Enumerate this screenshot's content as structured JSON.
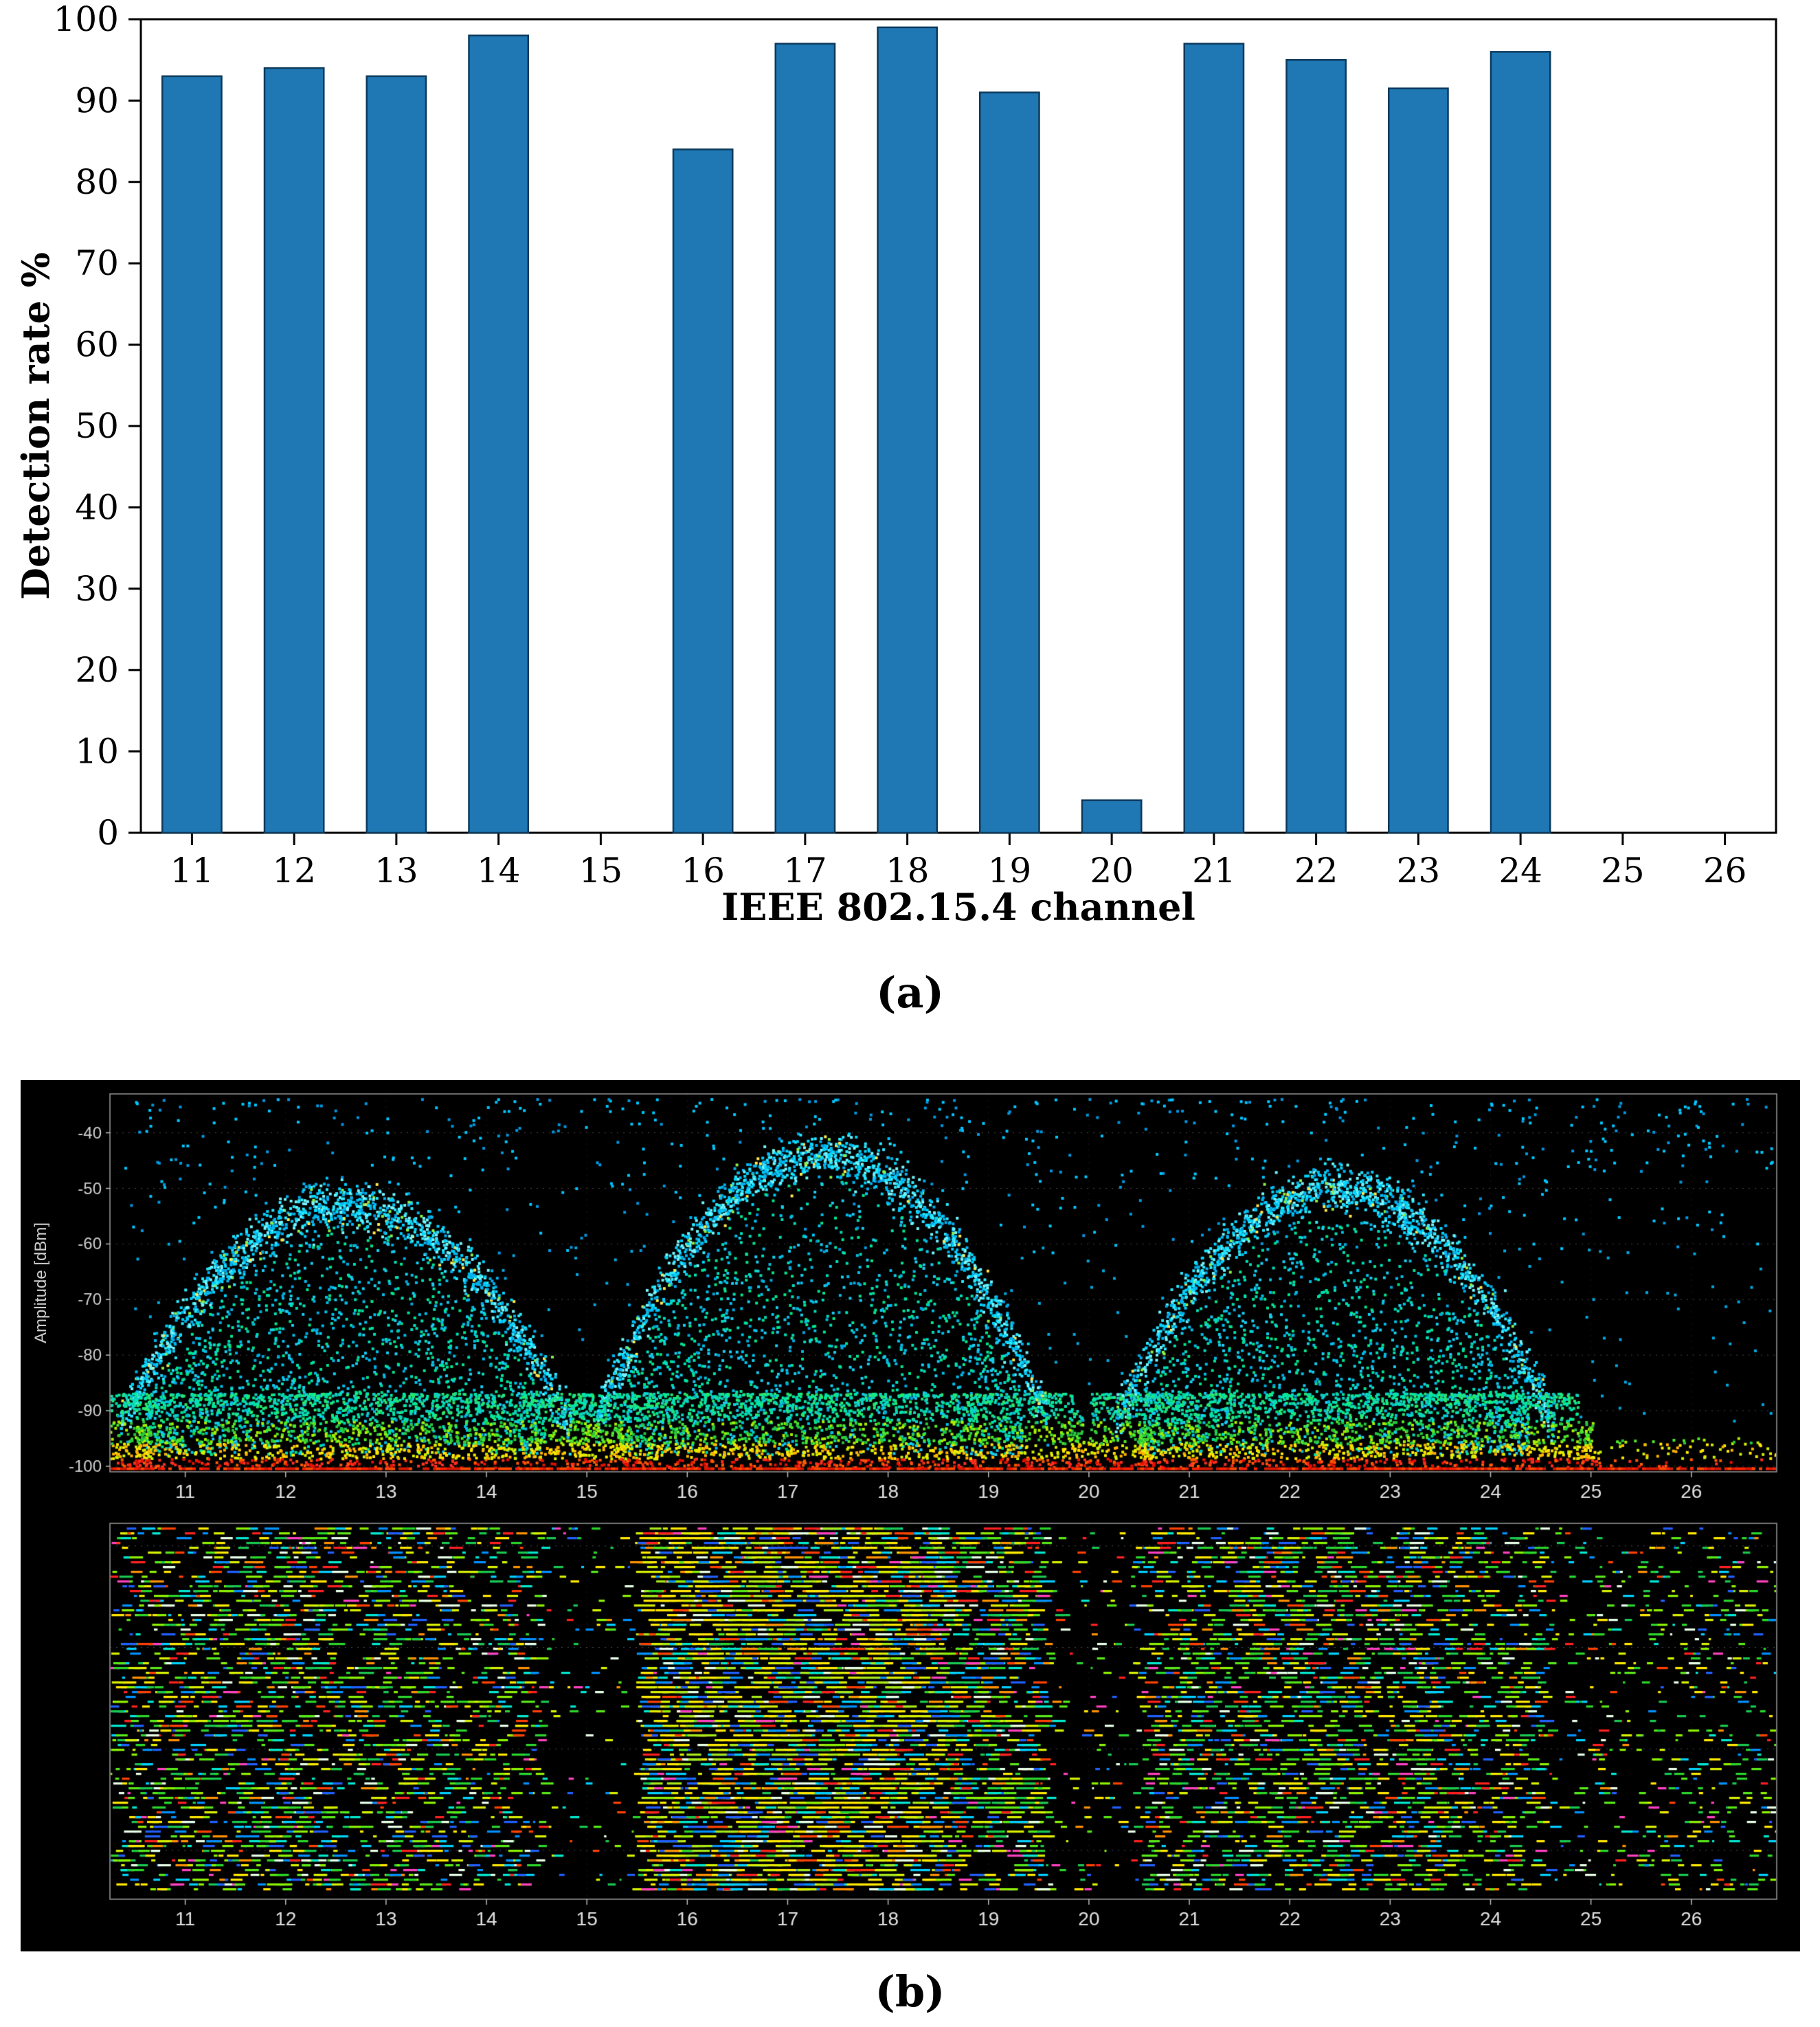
{
  "figure": {
    "caption_a": "(a)",
    "caption_b": "(b)"
  },
  "chart_data": [
    {
      "type": "bar",
      "title": "",
      "xlabel": "IEEE 802.15.4 channel",
      "ylabel": "Detection rate %",
      "categories": [
        11,
        12,
        13,
        14,
        15,
        16,
        17,
        18,
        19,
        20,
        21,
        22,
        23,
        24,
        25,
        26
      ],
      "values": [
        93,
        94,
        93,
        98,
        0,
        84,
        97,
        99,
        91,
        4,
        97,
        95,
        91.5,
        96,
        0,
        0
      ],
      "ylim": [
        0,
        100
      ],
      "yticks": [
        0,
        10,
        20,
        30,
        40,
        50,
        60,
        70,
        80,
        90,
        100
      ],
      "grid": false,
      "legend_position": "none",
      "bar_color": "#1f77b4",
      "bar_edge_color": "#0d3a5c"
    },
    {
      "type": "scatter",
      "title": "",
      "xlabel": "",
      "ylabel": "Amplitude [dBm]",
      "xticks": [
        11,
        12,
        13,
        14,
        15,
        16,
        17,
        18,
        19,
        20,
        21,
        22,
        23,
        24,
        25,
        26
      ],
      "yticks": [
        -40,
        -50,
        -60,
        -70,
        -80,
        -90,
        -100
      ],
      "xlim": [
        10.25,
        26.85
      ],
      "ylim": [
        -101,
        -33
      ],
      "background": "#000000",
      "grid": "dotted",
      "humps": [
        {
          "center": 12.6,
          "half_width": 1.95,
          "peak": -53,
          "edge_level": -83
        },
        {
          "center": 17.35,
          "half_width": 1.95,
          "peak": -44,
          "edge_level": -80
        },
        {
          "center": 22.45,
          "half_width": 1.9,
          "peak": -50,
          "edge_level": -82
        }
      ],
      "spikes": [
        {
          "channel": 15.35,
          "top": -91
        },
        {
          "channel": 19.9,
          "top": -90
        },
        {
          "channel": 20.55,
          "top": -93
        },
        {
          "channel": 10.6,
          "top": -93
        },
        {
          "channel": 24.95,
          "top": -92
        }
      ],
      "baseline_level": -100
    },
    {
      "type": "heatmap",
      "title": "",
      "xticks": [
        11,
        12,
        13,
        14,
        15,
        16,
        17,
        18,
        19,
        20,
        21,
        22,
        23,
        24,
        25,
        26
      ],
      "xlim": [
        10.25,
        26.85
      ],
      "background": "#000000",
      "grid": "dotted",
      "density_by_channel": {
        "11": 0.55,
        "12": 0.62,
        "13": 0.55,
        "14": 0.45,
        "15": 0.12,
        "16": 0.95,
        "17": 1.0,
        "18": 1.0,
        "19": 0.8,
        "20": 0.15,
        "21": 0.6,
        "22": 0.68,
        "23": 0.62,
        "24": 0.5,
        "25": 0.22,
        "26": 0.25
      }
    }
  ]
}
